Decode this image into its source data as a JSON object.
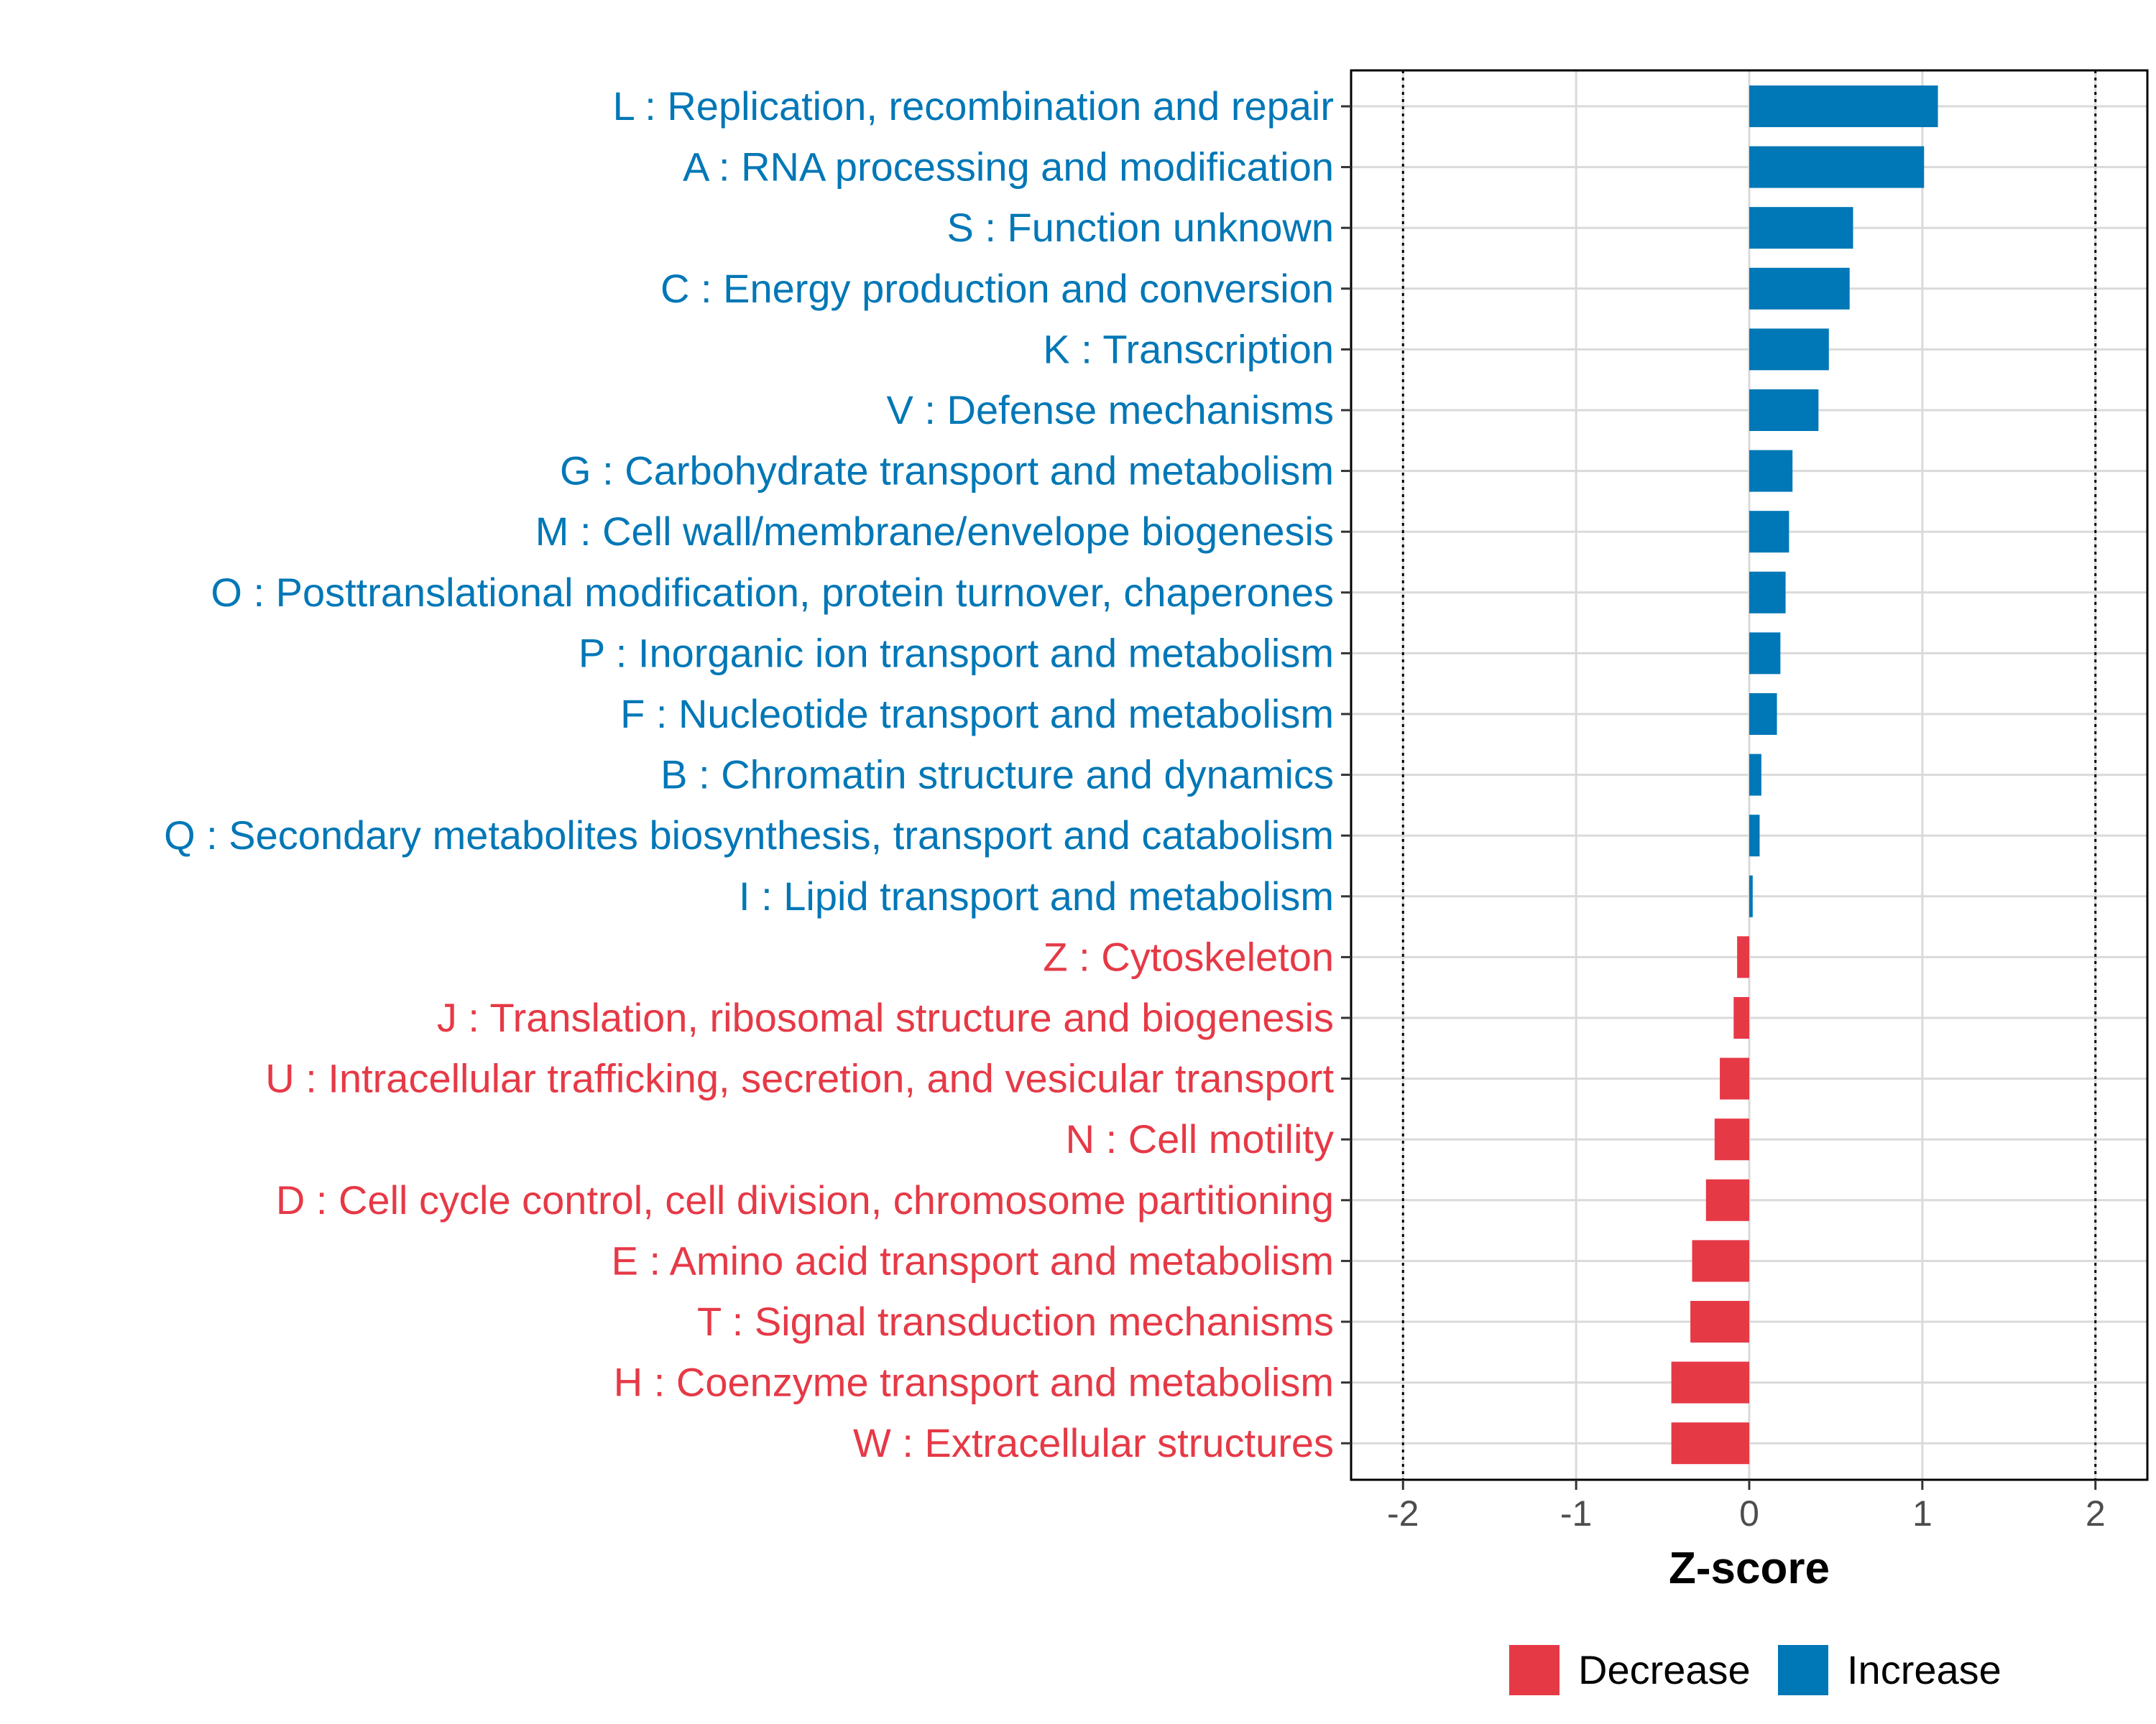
{
  "chart_data": {
    "type": "bar",
    "orientation": "horizontal",
    "title": "",
    "xlabel": "Z-score",
    "ylabel": "",
    "xlim": [
      -2.3,
      2.3
    ],
    "xticks": [
      -2,
      -1,
      0,
      1,
      2
    ],
    "xtick_labels": [
      "-2",
      "-1",
      "0",
      "1",
      "2"
    ],
    "reference_lines": [
      -2,
      2
    ],
    "grid": true,
    "legend_position": "bottom",
    "colors": {
      "Decrease": "#e63946",
      "Increase": "#0077b6"
    },
    "categories": [
      "L : Replication, recombination and repair",
      "A : RNA processing and modification",
      "S : Function unknown",
      "C : Energy production and conversion",
      "K : Transcription",
      "V : Defense mechanisms",
      "G : Carbohydrate transport and metabolism",
      "M : Cell wall/membrane/envelope biogenesis",
      "O : Posttranslational modification, protein turnover, chaperones",
      "P : Inorganic ion transport and metabolism",
      "F : Nucleotide transport and metabolism",
      "B : Chromatin structure and dynamics",
      "Q : Secondary metabolites biosynthesis, transport and catabolism",
      "I : Lipid transport and metabolism",
      "Z : Cytoskeleton",
      "J : Translation, ribosomal structure and biogenesis",
      "U : Intracellular trafficking, secretion, and vesicular transport",
      "N : Cell motility",
      "D : Cell cycle control, cell division, chromosome partitioning",
      "E : Amino acid transport and metabolism",
      "T : Signal transduction mechanisms",
      "H : Coenzyme transport and metabolism",
      "W : Extracellular structures"
    ],
    "values": [
      1.09,
      1.01,
      0.6,
      0.58,
      0.46,
      0.4,
      0.25,
      0.23,
      0.21,
      0.18,
      0.16,
      0.07,
      0.06,
      0.02,
      -0.07,
      -0.09,
      -0.17,
      -0.2,
      -0.25,
      -0.33,
      -0.34,
      -0.45,
      -0.45
    ],
    "groups": [
      "Increase",
      "Increase",
      "Increase",
      "Increase",
      "Increase",
      "Increase",
      "Increase",
      "Increase",
      "Increase",
      "Increase",
      "Increase",
      "Increase",
      "Increase",
      "Increase",
      "Decrease",
      "Decrease",
      "Decrease",
      "Decrease",
      "Decrease",
      "Decrease",
      "Decrease",
      "Decrease",
      "Decrease"
    ],
    "legend": [
      "Decrease",
      "Increase"
    ]
  }
}
